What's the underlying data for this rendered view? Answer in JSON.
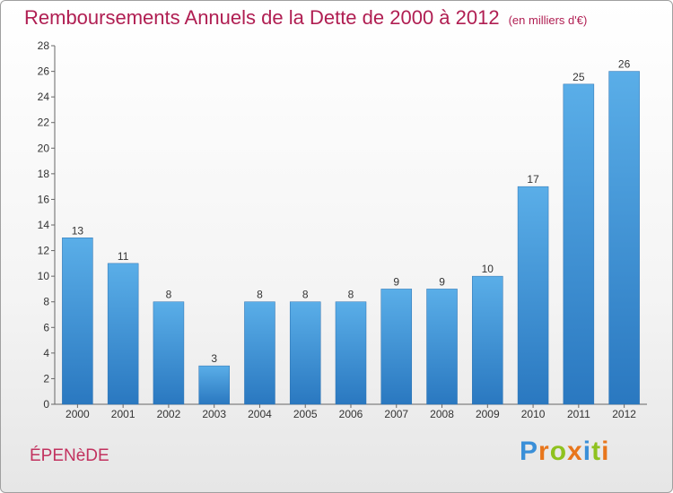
{
  "title": "Remboursements Annuels de la Dette de 2000 à 2012",
  "subtitle": "(en milliers d'€)",
  "commune": "ÉPENèDE",
  "logo": {
    "letters": [
      "P",
      "r",
      "o",
      "x",
      "i",
      "t",
      "i"
    ],
    "colors": [
      "#3a8fd8",
      "#e8761c",
      "#8fc21f",
      "#e8761c",
      "#3a8fd8",
      "#8fc21f",
      "#e8761c"
    ]
  },
  "colors": {
    "bar": "#3d8fd6",
    "title": "#b01e52"
  },
  "chart_data": {
    "type": "bar",
    "title": "Remboursements Annuels de la Dette de 2000 à 2012",
    "subtitle": "(en milliers d'€)",
    "categories": [
      "2000",
      "2001",
      "2002",
      "2003",
      "2004",
      "2005",
      "2006",
      "2007",
      "2008",
      "2009",
      "2010",
      "2011",
      "2012"
    ],
    "values": [
      13,
      11,
      8,
      3,
      8,
      8,
      8,
      9,
      9,
      10,
      17,
      25,
      26
    ],
    "ylim": [
      0,
      28
    ],
    "yticks": [
      0,
      2,
      4,
      6,
      8,
      10,
      12,
      14,
      16,
      18,
      20,
      22,
      24,
      26,
      28
    ],
    "grid": false,
    "legend": "none"
  }
}
